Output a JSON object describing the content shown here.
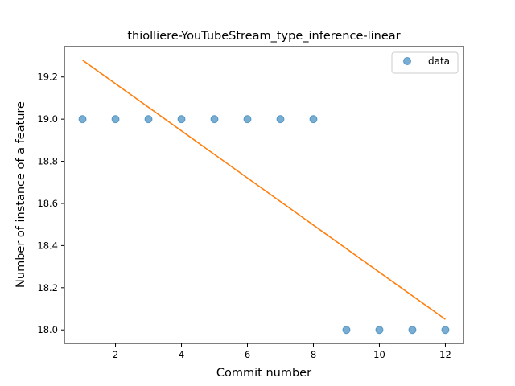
{
  "chart_data": {
    "type": "scatter",
    "title": "thiolliere-YouTubeStream_type_inference-linear",
    "xlabel": "Commit number",
    "ylabel": "Number of instance of a feature",
    "xlim": [
      0.45,
      12.55
    ],
    "ylim": [
      17.936,
      19.344
    ],
    "xticks": [
      2,
      4,
      6,
      8,
      10,
      12
    ],
    "yticks": [
      18.0,
      18.2,
      18.4,
      18.6,
      18.8,
      19.0,
      19.2
    ],
    "grid": false,
    "legend_position": "top-right",
    "series": [
      {
        "name": "data",
        "kind": "scatter",
        "color": "#1f77b4",
        "x": [
          1,
          2,
          3,
          4,
          5,
          6,
          7,
          8,
          9,
          10,
          11,
          12
        ],
        "y": [
          19,
          19,
          19,
          19,
          19,
          19,
          19,
          19,
          18,
          18,
          18,
          18
        ]
      },
      {
        "kind": "line",
        "color": "#ff7f0e",
        "x": [
          1,
          12
        ],
        "y": [
          19.28,
          18.05
        ]
      }
    ]
  }
}
